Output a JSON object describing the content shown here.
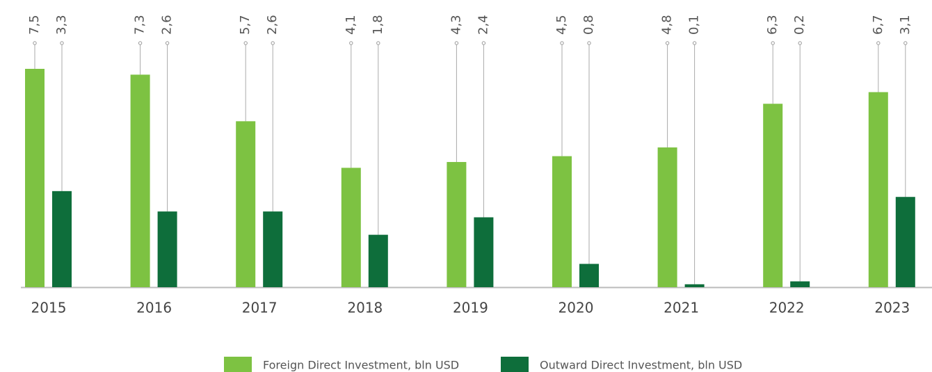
{
  "chart_data": {
    "type": "bar",
    "categories": [
      "2015",
      "2016",
      "2017",
      "2018",
      "2019",
      "2020",
      "2021",
      "2022",
      "2023"
    ],
    "series": [
      {
        "name": "Foreign Direct Investment, bln USD",
        "color": "#7dc242",
        "values": [
          7.5,
          7.3,
          5.7,
          4.1,
          4.3,
          4.5,
          4.8,
          6.3,
          6.7
        ],
        "value_labels": [
          "7,5",
          "7,3",
          "5,7",
          "4,1",
          "4,3",
          "4,5",
          "4,8",
          "6,3",
          "6,7"
        ]
      },
      {
        "name": "Outward Direct Investment, bln USD",
        "color": "#0e6e3b",
        "values": [
          3.3,
          2.6,
          2.6,
          1.8,
          2.4,
          0.8,
          0.1,
          0.2,
          3.1
        ],
        "value_labels": [
          "3,3",
          "2,6",
          "2,6",
          "1,8",
          "2,4",
          "0,8",
          "0,1",
          "0,2",
          "3,1"
        ]
      }
    ],
    "ylim": [
      0,
      7.5
    ],
    "legend": "bottom"
  }
}
